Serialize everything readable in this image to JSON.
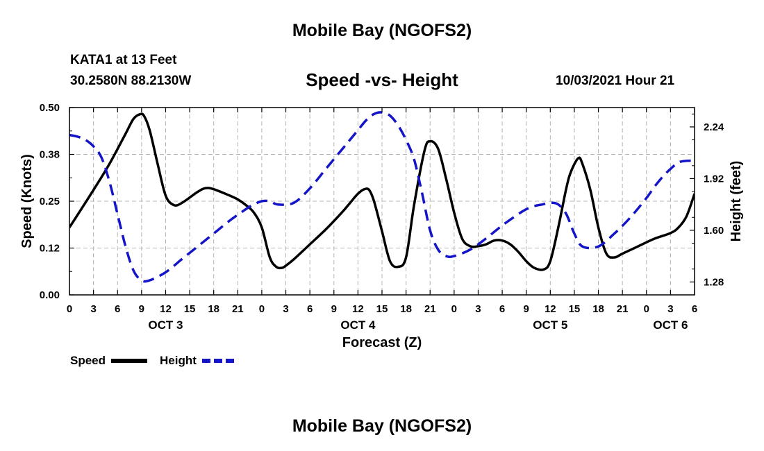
{
  "header": {
    "title": "Mobile Bay (NGOFS2)",
    "station": "KATA1 at 13 Feet",
    "coords": "30.2580N  88.2130W",
    "subtitle": "Speed -vs- Height",
    "run_time": "10/03/2021 Hour 21",
    "footer_title": "Mobile Bay (NGOFS2)"
  },
  "legend": {
    "speed_label": "Speed",
    "height_label": "Height"
  },
  "colors": {
    "speed": "#000000",
    "height": "#1414c8",
    "grid": "#b4b4b4"
  },
  "chart_data": {
    "type": "line",
    "title": "Speed -vs- Height",
    "xlabel": "Forecast (Z)",
    "ylabel": "Speed (Knots)",
    "y2label": "Height (feet)",
    "xlim": [
      0,
      78
    ],
    "ylim": [
      0,
      0.5
    ],
    "y2lim": [
      1.2,
      2.36
    ],
    "x_ticks": [
      0,
      3,
      6,
      9,
      12,
      15,
      18,
      21,
      24,
      27,
      30,
      33,
      36,
      39,
      42,
      45,
      48,
      51,
      54,
      57,
      60,
      63,
      66,
      69,
      72,
      75,
      78
    ],
    "x_tick_labels": [
      "0",
      "3",
      "6",
      "9",
      "12",
      "15",
      "18",
      "21",
      "0",
      "3",
      "6",
      "9",
      "12",
      "15",
      "18",
      "21",
      "0",
      "3",
      "6",
      "9",
      "12",
      "15",
      "18",
      "21",
      "0",
      "3",
      "6"
    ],
    "date_labels": [
      {
        "label": "OCT 3",
        "x": 12
      },
      {
        "label": "OCT 4",
        "x": 36
      },
      {
        "label": "OCT 5",
        "x": 60
      },
      {
        "label": "OCT 6",
        "x": 75
      }
    ],
    "y_ticks": [
      0.0,
      0.125,
      0.25,
      0.375,
      0.5
    ],
    "y_tick_labels": [
      "0.00",
      "0.12",
      "0.25",
      "0.38",
      "0.50"
    ],
    "y2_ticks": [
      1.28,
      1.6,
      1.92,
      2.24
    ],
    "y2_tick_labels": [
      "1.28",
      "1.60",
      "1.92",
      "2.24"
    ],
    "grid": true,
    "series": [
      {
        "name": "Speed",
        "axis": "left",
        "style": "solid",
        "x": [
          0,
          3,
          5,
          7,
          8,
          8.8,
          9.3,
          10,
          11,
          12,
          13,
          14,
          16,
          17,
          18,
          20,
          21,
          22,
          23,
          24,
          25,
          25.8,
          26.5,
          27,
          28,
          30,
          32,
          34,
          35,
          36,
          36.8,
          37.4,
          38,
          39,
          40,
          41,
          42,
          43,
          44.3,
          45,
          46,
          47,
          48,
          49,
          50,
          51,
          52,
          53,
          54,
          55,
          56,
          57,
          58,
          59.2,
          60,
          61,
          62,
          62.6,
          63.5,
          64,
          65,
          66,
          67,
          68,
          69,
          71,
          73,
          75,
          76,
          77,
          78
        ],
        "values": [
          0.18,
          0.28,
          0.35,
          0.43,
          0.47,
          0.482,
          0.478,
          0.44,
          0.35,
          0.265,
          0.24,
          0.245,
          0.275,
          0.285,
          0.282,
          0.265,
          0.255,
          0.24,
          0.22,
          0.18,
          0.1,
          0.075,
          0.072,
          0.078,
          0.095,
          0.135,
          0.175,
          0.22,
          0.245,
          0.27,
          0.282,
          0.28,
          0.25,
          0.17,
          0.09,
          0.075,
          0.1,
          0.24,
          0.385,
          0.41,
          0.39,
          0.31,
          0.22,
          0.15,
          0.13,
          0.13,
          0.135,
          0.145,
          0.145,
          0.135,
          0.115,
          0.09,
          0.072,
          0.068,
          0.09,
          0.18,
          0.285,
          0.33,
          0.365,
          0.35,
          0.28,
          0.18,
          0.11,
          0.1,
          0.11,
          0.13,
          0.15,
          0.165,
          0.18,
          0.21,
          0.27
        ]
      },
      {
        "name": "Height",
        "axis": "right",
        "style": "dashed",
        "x": [
          0,
          1,
          2,
          3,
          4,
          5,
          6,
          7,
          8,
          9,
          10,
          12,
          14,
          16,
          18,
          20,
          22,
          23,
          24,
          25,
          26,
          28,
          30,
          32,
          34,
          35,
          36,
          37,
          38,
          39,
          40,
          41,
          42,
          43,
          44,
          45,
          46,
          47,
          48,
          50,
          52,
          54,
          56,
          57,
          58,
          59,
          60,
          61,
          62,
          63,
          64,
          66,
          68,
          70,
          72,
          73,
          74,
          75,
          76,
          77,
          78
        ],
        "values": [
          2.19,
          2.18,
          2.16,
          2.12,
          2.05,
          1.9,
          1.7,
          1.5,
          1.35,
          1.29,
          1.29,
          1.34,
          1.42,
          1.5,
          1.58,
          1.66,
          1.73,
          1.76,
          1.78,
          1.78,
          1.76,
          1.77,
          1.86,
          1.98,
          2.1,
          2.16,
          2.22,
          2.28,
          2.32,
          2.33,
          2.31,
          2.25,
          2.16,
          2.04,
          1.83,
          1.6,
          1.48,
          1.44,
          1.44,
          1.48,
          1.55,
          1.63,
          1.7,
          1.73,
          1.75,
          1.76,
          1.77,
          1.76,
          1.7,
          1.58,
          1.5,
          1.5,
          1.58,
          1.68,
          1.8,
          1.87,
          1.93,
          1.98,
          2.02,
          2.03,
          2.03
        ]
      }
    ]
  }
}
